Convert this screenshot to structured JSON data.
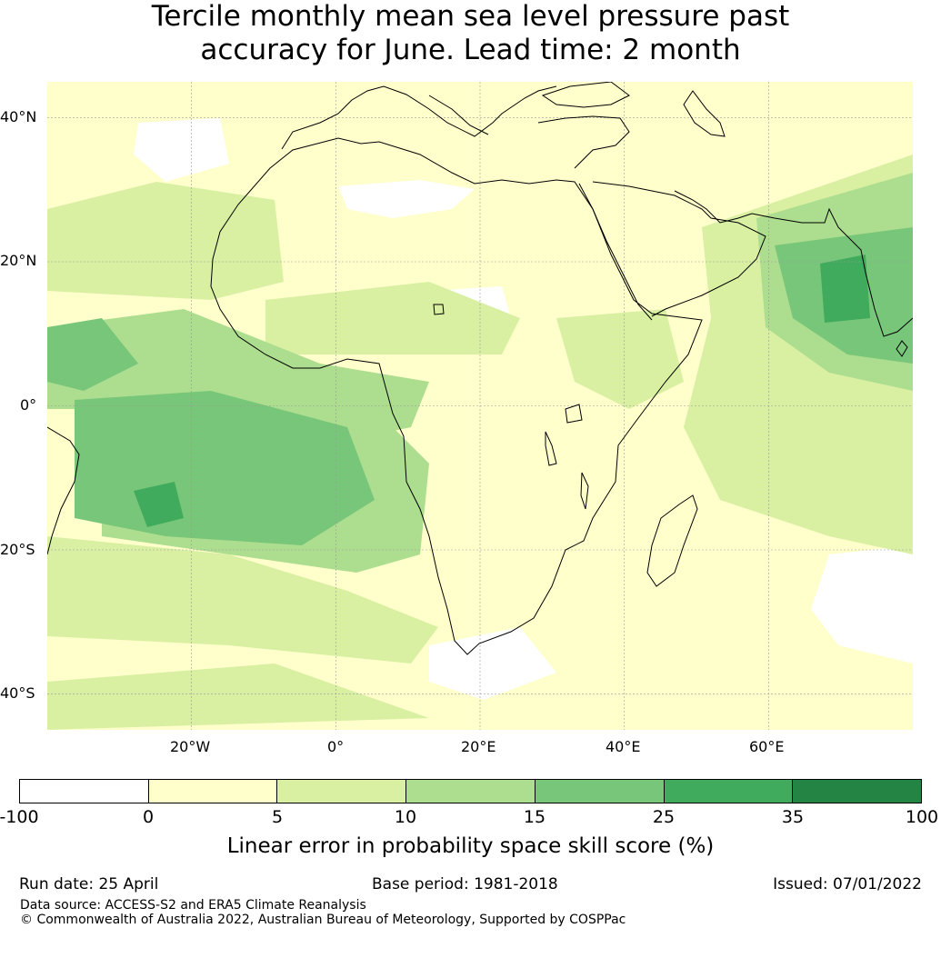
{
  "title": {
    "line1": "Tercile monthly mean sea level pressure past",
    "line2": "accuracy for June. Lead time: 2 month"
  },
  "map": {
    "region": "Africa",
    "lat_labels": [
      "40°N",
      "20°N",
      "0°",
      "20°S",
      "40°S"
    ],
    "lon_labels": [
      "20°W",
      "0°",
      "20°E",
      "40°E",
      "60°E"
    ],
    "colors": {
      "ocean_background": "#ffffcc",
      "land_outline": "#000000",
      "gridline": "#9a9a9a"
    }
  },
  "colorbar": {
    "ticks": [
      "-100",
      "0",
      "5",
      "10",
      "15",
      "25",
      "35",
      "100"
    ],
    "colors": [
      "#ffffff",
      "#ffffcc",
      "#d9f0a3",
      "#addd8e",
      "#78c679",
      "#41ab5d",
      "#238443"
    ],
    "label": "Linear error in probability space skill score (%)"
  },
  "footer": {
    "run_date": "Run date: 25 April",
    "base_period": "Base period: 1981-2018",
    "issued": "Issued: 07/01/2022",
    "data_source": "Data source: ACCESS-S2 and ERA5 Climate Reanalysis",
    "copyright": "© Commonwealth of Australia 2022, Australian Bureau of Meteorology, Supported by COSPPac"
  }
}
